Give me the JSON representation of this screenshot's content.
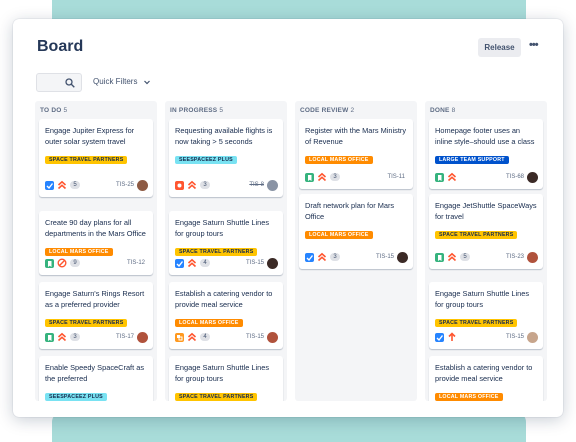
{
  "board": {
    "title": "Board",
    "release_label": "Release",
    "more_label": "•••"
  },
  "filters": {
    "search_placeholder": "",
    "quick_filters_label": "Quick Filters"
  },
  "colors": {
    "teal_bg": "#a8dcd9",
    "story": "#36b37e",
    "task": "#2684ff",
    "bug": "#ff5630",
    "label_yellow": "#ffc400",
    "label_orange": "#ff8b00",
    "label_cyan": "#79e2f2",
    "label_blue": "#0052cc"
  },
  "columns": [
    {
      "title": "TO DO",
      "count": "5",
      "cards": [
        {
          "title": "Engage Jupiter Express for outer solar system travel",
          "label": "SPACE TRAVEL PARTNERS",
          "label_color": "yellow",
          "type_icon": "task-icon",
          "priority_icon": "priority-highest-icon",
          "points": "5",
          "key": "TIS-25",
          "avatar": "avatar-brown"
        },
        {
          "title": "Create 90 day plans for all departments in the Mars Office",
          "label": "LOCAL MARS OFFICE",
          "label_color": "orange",
          "type_icon": "story-icon",
          "priority_icon": "blocker-icon",
          "points": "9",
          "key": "TIS-12",
          "avatar": ""
        },
        {
          "title": "Engage Saturn's Rings Resort as a preferred provider",
          "label": "SPACE TRAVEL PARTNERS",
          "label_color": "yellow",
          "type_icon": "story-icon",
          "priority_icon": "priority-highest-icon",
          "points": "3",
          "key": "TIS-17",
          "avatar": "avatar-red"
        },
        {
          "title": "Enable Speedy SpaceCraft as the preferred",
          "label": "SEESPACEEZ PLUS",
          "label_color": "cyan",
          "type_icon": "",
          "priority_icon": "",
          "points": "",
          "key": "",
          "avatar": ""
        }
      ]
    },
    {
      "title": "IN PROGRESS",
      "count": "5",
      "cards": [
        {
          "title": "Requesting available flights is now taking > 5 seconds",
          "label": "SEESPACEEZ PLUS",
          "label_color": "cyan",
          "type_icon": "bug-icon",
          "priority_icon": "priority-highest-icon",
          "points": "3",
          "key": "TIS-8",
          "avatar": "avatar-grey",
          "strike": true
        },
        {
          "title": "Engage Saturn Shuttle Lines for group tours",
          "label": "SPACE TRAVEL PARTNERS",
          "label_color": "yellow",
          "type_icon": "task-icon",
          "priority_icon": "priority-highest-icon",
          "points": "4",
          "key": "TIS-15",
          "avatar": "avatar-dark"
        },
        {
          "title": "Establish a catering vendor to provide meal service",
          "label": "LOCAL MARS OFFICE",
          "label_color": "orange",
          "type_icon": "subtask-icon",
          "priority_icon": "priority-highest-icon",
          "points": "4",
          "key": "TIS-15",
          "avatar": "avatar-red"
        },
        {
          "title": "Engage Saturn Shuttle Lines for group tours",
          "label": "SPACE TRAVEL PARTNERS",
          "label_color": "yellow",
          "type_icon": "",
          "priority_icon": "",
          "points": "",
          "key": "",
          "avatar": ""
        }
      ]
    },
    {
      "title": "CODE REVIEW",
      "count": "2",
      "cards": [
        {
          "title": "Register with the Mars Ministry of Revenue",
          "label": "LOCAL MARS OFFICE",
          "label_color": "orange",
          "type_icon": "story-icon",
          "priority_icon": "priority-highest-icon",
          "points": "3",
          "key": "TIS-11",
          "avatar": ""
        },
        {
          "title": "Draft network plan for Mars Office",
          "label": "LOCAL MARS OFFICE",
          "label_color": "orange",
          "type_icon": "task-icon",
          "priority_icon": "priority-highest-icon",
          "points": "3",
          "key": "TIS-15",
          "avatar": "avatar-dark"
        }
      ]
    },
    {
      "title": "DONE",
      "count": "8",
      "cards": [
        {
          "title": "Homepage footer uses an inline style–should use a class",
          "label": "LARGE TEAM SUPPORT",
          "label_color": "blue",
          "type_icon": "story-icon",
          "priority_icon": "priority-highest-icon",
          "points": "",
          "key": "TIS-68",
          "avatar": "avatar-dark"
        },
        {
          "title": "Engage JetShuttle SpaceWays for travel",
          "label": "SPACE TRAVEL PARTNERS",
          "label_color": "yellow",
          "type_icon": "story-icon",
          "priority_icon": "priority-highest-icon",
          "points": "5",
          "key": "TIS-23",
          "avatar": "avatar-red"
        },
        {
          "title": "Engage Saturn Shuttle Lines for group tours",
          "label": "SPACE TRAVEL PARTNERS",
          "label_color": "yellow",
          "type_icon": "task-icon",
          "priority_icon": "priority-high-icon",
          "points": "",
          "key": "TIS-15",
          "avatar": "avatar-light"
        },
        {
          "title": "Establish a catering vendor to provide meal service",
          "label": "LOCAL MARS OFFICE",
          "label_color": "orange",
          "type_icon": "",
          "priority_icon": "",
          "points": "",
          "key": "",
          "avatar": ""
        }
      ]
    }
  ]
}
